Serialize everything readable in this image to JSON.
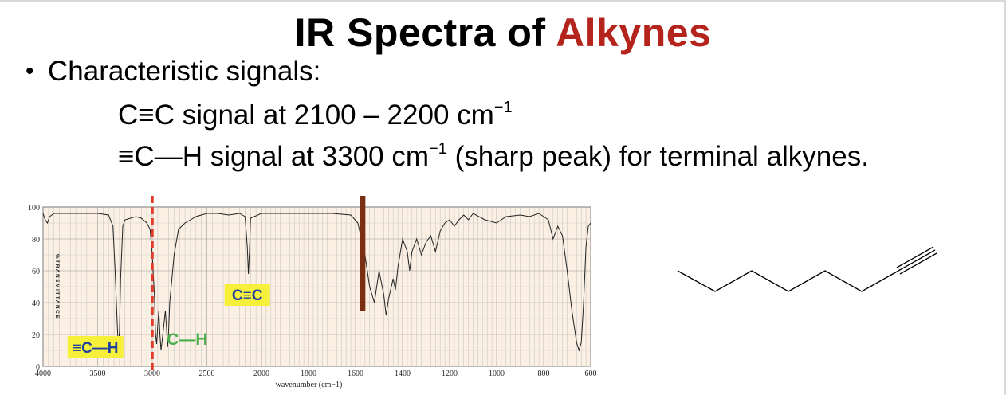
{
  "slide": {
    "title_main": "IR Spectra of ",
    "title_accent": "Alkynes",
    "title_accent_color": "#b5241c",
    "bullet_text": "Characteristic signals:",
    "line1": {
      "prefix": "C≡C signal at 2100 – 2200 cm",
      "sup": "−1",
      "suffix": ""
    },
    "line2": {
      "prefix": "≡C—H signal at 3300 cm",
      "sup": "−1",
      "suffix": " (sharp peak) for terminal alkynes."
    }
  },
  "chart_data": {
    "type": "line",
    "ylabel": "%TRANSMITTANCE",
    "xlabel": "wavenumber (cm−1)",
    "yticks": [
      0,
      20,
      40,
      60,
      80,
      100
    ],
    "ylim": [
      0,
      100
    ],
    "xticks": [
      4000,
      3500,
      3000,
      2500,
      2000,
      1800,
      1600,
      1400,
      1200,
      1000,
      800,
      600
    ],
    "xlim": [
      4000,
      600
    ],
    "grid": true,
    "background_color": "#fbf0e3",
    "series": [
      {
        "points": [
          [
            4000,
            96
          ],
          [
            3980,
            92
          ],
          [
            3960,
            90
          ],
          [
            3940,
            94
          ],
          [
            3900,
            96
          ],
          [
            3700,
            96
          ],
          [
            3500,
            96
          ],
          [
            3400,
            95
          ],
          [
            3360,
            88
          ],
          [
            3340,
            60
          ],
          [
            3320,
            25
          ],
          [
            3310,
            12
          ],
          [
            3300,
            22
          ],
          [
            3290,
            55
          ],
          [
            3270,
            88
          ],
          [
            3250,
            92
          ],
          [
            3150,
            94
          ],
          [
            3100,
            93
          ],
          [
            3050,
            90
          ],
          [
            3020,
            86
          ],
          [
            3000,
            70
          ],
          [
            2980,
            45
          ],
          [
            2970,
            20
          ],
          [
            2960,
            14
          ],
          [
            2950,
            25
          ],
          [
            2940,
            35
          ],
          [
            2930,
            20
          ],
          [
            2920,
            10
          ],
          [
            2900,
            22
          ],
          [
            2880,
            35
          ],
          [
            2870,
            25
          ],
          [
            2860,
            12
          ],
          [
            2850,
            22
          ],
          [
            2840,
            40
          ],
          [
            2800,
            70
          ],
          [
            2760,
            86
          ],
          [
            2700,
            90
          ],
          [
            2650,
            92
          ],
          [
            2600,
            94
          ],
          [
            2500,
            96
          ],
          [
            2400,
            96
          ],
          [
            2300,
            95
          ],
          [
            2200,
            96
          ],
          [
            2150,
            94
          ],
          [
            2130,
            75
          ],
          [
            2120,
            58
          ],
          [
            2110,
            72
          ],
          [
            2100,
            93
          ],
          [
            2000,
            96
          ],
          [
            1800,
            96
          ],
          [
            1700,
            96
          ],
          [
            1620,
            95
          ],
          [
            1590,
            90
          ],
          [
            1560,
            70
          ],
          [
            1540,
            50
          ],
          [
            1520,
            40
          ],
          [
            1500,
            60
          ],
          [
            1480,
            45
          ],
          [
            1470,
            32
          ],
          [
            1460,
            42
          ],
          [
            1440,
            55
          ],
          [
            1430,
            48
          ],
          [
            1420,
            62
          ],
          [
            1400,
            80
          ],
          [
            1380,
            72
          ],
          [
            1370,
            60
          ],
          [
            1360,
            72
          ],
          [
            1340,
            80
          ],
          [
            1320,
            70
          ],
          [
            1300,
            78
          ],
          [
            1280,
            82
          ],
          [
            1260,
            72
          ],
          [
            1240,
            85
          ],
          [
            1220,
            90
          ],
          [
            1200,
            92
          ],
          [
            1180,
            88
          ],
          [
            1160,
            92
          ],
          [
            1140,
            95
          ],
          [
            1120,
            92
          ],
          [
            1100,
            96
          ],
          [
            1050,
            92
          ],
          [
            1000,
            90
          ],
          [
            960,
            94
          ],
          [
            900,
            95
          ],
          [
            860,
            94
          ],
          [
            820,
            96
          ],
          [
            780,
            92
          ],
          [
            760,
            80
          ],
          [
            740,
            88
          ],
          [
            720,
            82
          ],
          [
            700,
            60
          ],
          [
            680,
            35
          ],
          [
            660,
            15
          ],
          [
            650,
            10
          ],
          [
            640,
            15
          ],
          [
            630,
            40
          ],
          [
            620,
            75
          ],
          [
            610,
            88
          ],
          [
            600,
            90
          ]
        ]
      }
    ],
    "labels": [
      {
        "text": "≡C—H",
        "color": "#1f3f9f",
        "box": "#f7f03b",
        "wavenumber": 3520,
        "transmittance": 12
      },
      {
        "text": "C—H",
        "color": "#4aae4a",
        "box": "",
        "wavenumber": 2680,
        "transmittance": 17
      },
      {
        "text": "C≡C",
        "color": "#1f3f9f",
        "box": "#f7f03b",
        "wavenumber": 2130,
        "transmittance": 45
      }
    ],
    "markers": [
      {
        "style": "dashed",
        "color": "#e23b2a",
        "wavenumber": 3000
      },
      {
        "style": "solid",
        "color": "#7a2e12",
        "wavenumber": 1570
      }
    ]
  },
  "molecule": {
    "name_icon": "oct-1-yne-skeletal-structure-icon",
    "line_color": "#000000"
  }
}
